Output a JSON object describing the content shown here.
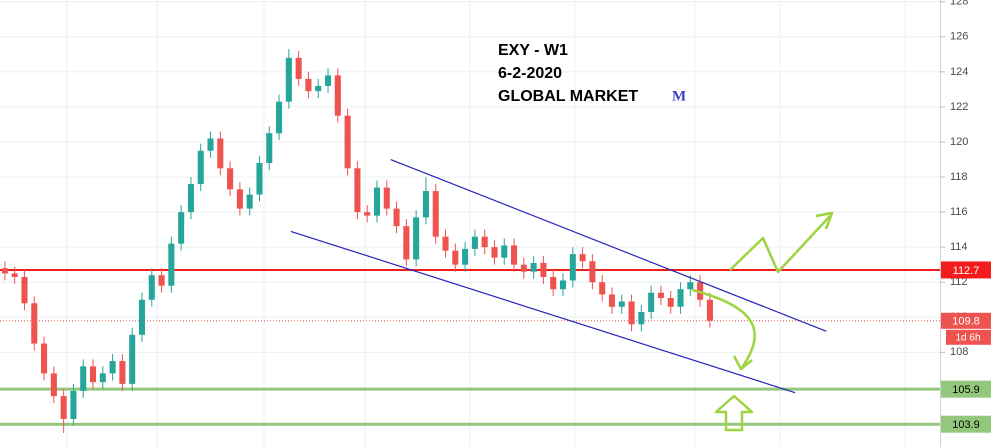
{
  "chart_data": {
    "type": "candlestick",
    "title": "EXY  -  W1",
    "subtitle": "6-2-2020",
    "source": "GLOBAL MARKET",
    "logo": "M",
    "ylim": [
      102.6,
      128.1
    ],
    "yticks": [
      108,
      110,
      112,
      114,
      116,
      118,
      120,
      122,
      124,
      126,
      128
    ],
    "xlim": [
      -0.5,
      95.5
    ],
    "up_color": "#26a69a",
    "down_color": "#ef5350",
    "open": [
      112.8,
      112.5,
      112.3,
      110.8,
      108.5,
      106.8,
      105.5,
      104.2,
      105.8,
      107.2,
      106.3,
      106.8,
      107.5,
      106.2,
      109.0,
      111.0,
      112.4,
      111.8,
      114.2,
      116.0,
      117.6,
      119.5,
      120.2,
      118.5,
      117.3,
      116.2,
      117.0,
      118.8,
      120.5,
      122.3,
      124.8,
      123.6,
      122.9,
      123.2,
      123.8,
      121.5,
      118.5,
      116.0,
      115.8,
      117.4,
      116.2,
      115.2,
      113.3,
      115.7,
      117.2,
      114.6,
      113.8,
      113.0,
      113.9,
      114.6,
      114.0,
      113.4,
      114.1,
      113.0,
      112.6,
      113.1,
      112.3,
      111.6,
      112.1,
      113.6,
      113.2,
      112.0,
      111.3,
      110.6,
      110.9,
      109.6,
      110.3,
      111.4,
      111.1,
      110.6,
      111.6,
      112.0,
      111.0
    ],
    "high": [
      113.2,
      112.9,
      112.7,
      111.2,
      108.9,
      107.2,
      105.9,
      106.2,
      107.6,
      107.6,
      107.2,
      107.9,
      107.9,
      109.4,
      111.4,
      112.8,
      112.8,
      114.6,
      116.4,
      118.0,
      119.9,
      120.6,
      120.6,
      118.9,
      117.7,
      117.4,
      119.2,
      120.9,
      122.7,
      125.3,
      125.2,
      124.0,
      123.6,
      124.2,
      124.2,
      121.9,
      118.9,
      116.4,
      117.8,
      117.8,
      116.6,
      115.6,
      116.1,
      118.0,
      117.6,
      115.0,
      114.2,
      114.3,
      115.0,
      115.0,
      114.4,
      114.5,
      114.5,
      113.4,
      113.5,
      113.5,
      112.7,
      112.5,
      114.0,
      114.0,
      113.6,
      112.4,
      111.7,
      111.3,
      111.3,
      110.7,
      111.8,
      111.8,
      111.5,
      112.0,
      112.4,
      112.4,
      111.4
    ],
    "low": [
      112.1,
      111.9,
      110.4,
      108.1,
      106.4,
      105.1,
      103.4,
      103.8,
      105.4,
      105.9,
      105.9,
      106.4,
      105.8,
      105.8,
      108.6,
      110.6,
      111.4,
      111.4,
      113.8,
      115.6,
      117.2,
      119.1,
      118.1,
      116.9,
      115.8,
      115.8,
      116.6,
      118.4,
      120.1,
      121.9,
      123.2,
      122.5,
      122.5,
      122.8,
      121.1,
      118.1,
      115.6,
      115.4,
      115.4,
      115.8,
      114.8,
      112.9,
      112.9,
      115.3,
      114.2,
      113.4,
      112.6,
      112.6,
      113.5,
      113.6,
      113.0,
      113.0,
      112.6,
      112.2,
      112.2,
      111.9,
      111.2,
      111.2,
      111.7,
      112.8,
      111.6,
      110.9,
      110.2,
      110.2,
      109.2,
      109.2,
      109.9,
      110.7,
      110.2,
      110.2,
      111.2,
      110.6,
      109.4
    ],
    "close": [
      112.5,
      112.3,
      110.8,
      108.5,
      106.8,
      105.5,
      104.2,
      105.8,
      107.2,
      106.3,
      106.8,
      107.5,
      106.2,
      109.0,
      111.0,
      112.4,
      111.8,
      114.2,
      116.0,
      117.6,
      119.5,
      120.2,
      118.5,
      117.3,
      116.2,
      117.0,
      118.8,
      120.5,
      122.3,
      124.8,
      123.6,
      122.9,
      123.2,
      123.8,
      121.5,
      118.5,
      116.0,
      115.8,
      117.4,
      116.2,
      115.2,
      113.3,
      115.7,
      117.2,
      114.6,
      113.8,
      113.0,
      113.9,
      114.6,
      114.0,
      113.4,
      114.1,
      113.0,
      112.6,
      113.1,
      112.3,
      111.6,
      112.1,
      113.6,
      113.2,
      112.0,
      111.3,
      110.6,
      110.9,
      109.6,
      110.3,
      111.4,
      111.1,
      110.6,
      111.6,
      112.0,
      111.0,
      109.8
    ],
    "levels": [
      {
        "value": 112.7,
        "color": "#f21c1c"
      },
      {
        "value": 105.9,
        "color": "#93c87c"
      },
      {
        "value": 103.9,
        "color": "#93c87c"
      }
    ],
    "last_price": 109.8,
    "last_price_color": "#ef5350",
    "countdown": "1d 6h",
    "trend_lines": [
      {
        "color": "#2424b8",
        "x": [
          39.4,
          83.9
        ],
        "y": [
          119.0,
          109.2
        ]
      },
      {
        "color": "#2424b8",
        "x": [
          29.2,
          80.7
        ],
        "y": [
          114.9,
          105.7
        ]
      }
    ]
  }
}
